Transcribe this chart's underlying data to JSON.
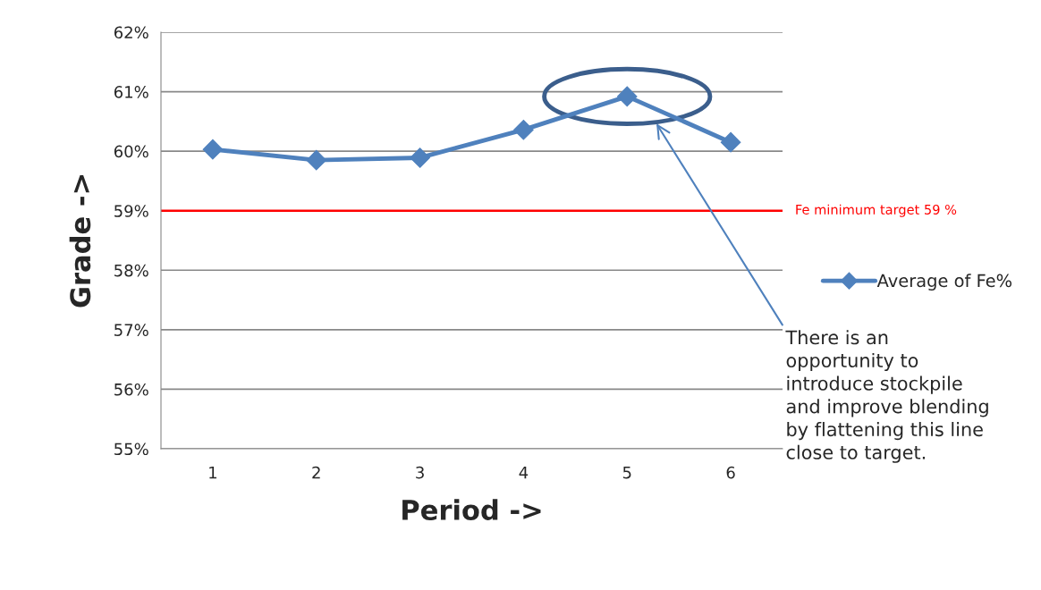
{
  "chart_data": {
    "type": "line",
    "xlabel": "Period ->",
    "ylabel": "Grade ->",
    "categories": [
      "1",
      "2",
      "3",
      "4",
      "5",
      "6"
    ],
    "series": [
      {
        "name": "Average of Fe%",
        "color": "#4f81bd",
        "values": [
          60.03,
          59.85,
          59.89,
          60.36,
          60.92,
          60.15
        ]
      }
    ],
    "ylim": [
      55,
      62
    ],
    "yticks": [
      {
        "value": 55,
        "label": "55%"
      },
      {
        "value": 56,
        "label": "56%"
      },
      {
        "value": 57,
        "label": "57%"
      },
      {
        "value": 58,
        "label": "58%"
      },
      {
        "value": 59,
        "label": "59%"
      },
      {
        "value": 60,
        "label": "60%"
      },
      {
        "value": 61,
        "label": "61%"
      },
      {
        "value": 62,
        "label": "62%"
      }
    ],
    "grid": "y",
    "legend": "right",
    "marker": "diamond",
    "line_style": "solid",
    "ref_lines": [
      {
        "axis": "y",
        "value": 59,
        "label": "Fe minimum target 59 %",
        "color": "#ff0000"
      }
    ],
    "annotations": [
      "There is an\nopportunity to\nintroduce stockpile\nand improve blending\nby flattening this line\nclose to target."
    ]
  }
}
